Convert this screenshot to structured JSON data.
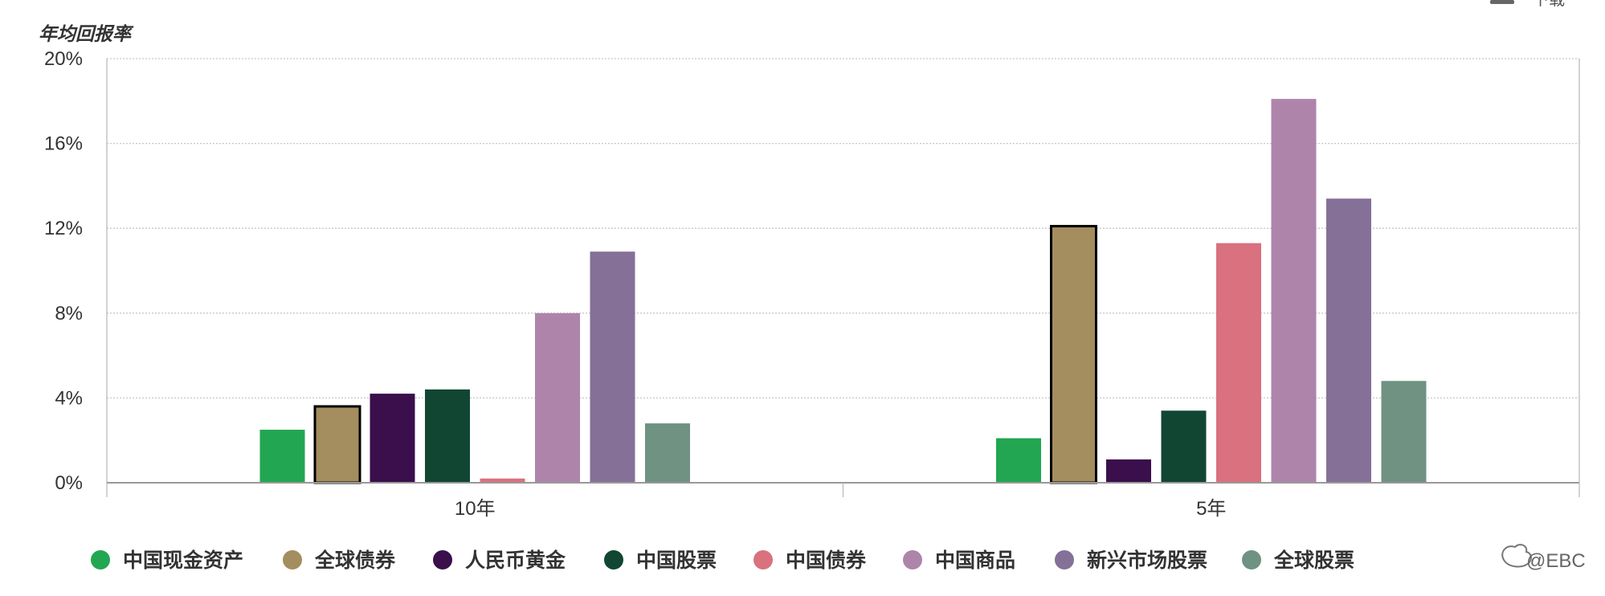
{
  "download": {
    "label": "下载"
  },
  "watermark": {
    "text": "@EBC"
  },
  "chart_data": {
    "type": "bar",
    "ylabel": "年均回报率",
    "xlabel": "",
    "ylim": [
      0,
      20
    ],
    "yticks": [
      0,
      4,
      8,
      12,
      16,
      20
    ],
    "ytick_labels": [
      "0%",
      "4%",
      "8%",
      "12%",
      "16%",
      "20%"
    ],
    "categories": [
      "10年",
      "5年"
    ],
    "grid": true,
    "legend_position": "bottom",
    "highlighted_series": "全球债券",
    "series": [
      {
        "name": "中国现金资产",
        "color": "#22a651",
        "values": [
          2.5,
          2.1
        ]
      },
      {
        "name": "全球债券",
        "color": "#a48d5e",
        "values": [
          3.6,
          12.1
        ]
      },
      {
        "name": "人民币黄金",
        "color": "#3a0f4c",
        "values": [
          4.2,
          1.1
        ]
      },
      {
        "name": "中国股票",
        "color": "#114633",
        "values": [
          4.4,
          3.4
        ]
      },
      {
        "name": "中国债券",
        "color": "#d9717f",
        "values": [
          0.2,
          11.3
        ]
      },
      {
        "name": "中国商品",
        "color": "#ae84ab",
        "values": [
          8.0,
          18.1
        ]
      },
      {
        "name": "新兴市场股票",
        "color": "#857097",
        "values": [
          10.9,
          13.4
        ]
      },
      {
        "name": "全球股票",
        "color": "#6f9282",
        "values": [
          2.8,
          4.8
        ]
      }
    ]
  }
}
